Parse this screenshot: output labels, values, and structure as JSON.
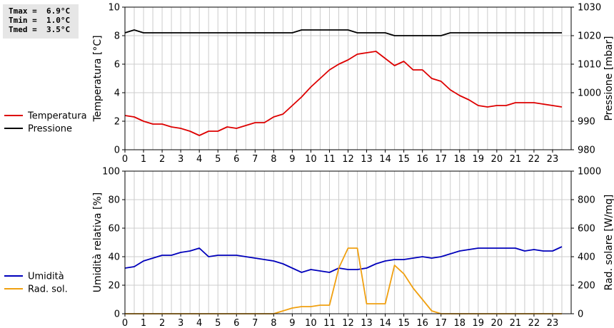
{
  "stats": {
    "tmax": "Tmax =  6.9°C",
    "tmin": "Tmin =  1.0°C",
    "tmed": "Tmed =  3.5°C"
  },
  "colors": {
    "temperature": "#dd0000",
    "pressure": "#000000",
    "humidity": "#0000bb",
    "radiation": "#f0a010",
    "grid": "#cccccc"
  },
  "chart_data": [
    {
      "type": "line",
      "ylabel": "Temperatura [°C]",
      "y2label": "Pressione [mbar]",
      "xlim": [
        0,
        24
      ],
      "x_ticks": [
        "0",
        "1",
        "2",
        "3",
        "4",
        "5",
        "6",
        "7",
        "8",
        "9",
        "10",
        "11",
        "12",
        "13",
        "14",
        "15",
        "16",
        "17",
        "18",
        "19",
        "20",
        "21",
        "22",
        "23"
      ],
      "ylim": [
        0,
        10
      ],
      "y_ticks": [
        "0",
        "2",
        "4",
        "6",
        "8",
        "10"
      ],
      "y2lim": [
        980,
        1030
      ],
      "y2_ticks": [
        "980",
        "990",
        "1000",
        "1010",
        "1020",
        "1030"
      ],
      "grid": true,
      "legend_position": "left",
      "series": [
        {
          "name": "Temperatura",
          "axis": "left",
          "color": "#dd0000",
          "x": [
            0,
            0.5,
            1,
            1.5,
            2,
            2.5,
            3,
            3.5,
            4,
            4.5,
            5,
            5.5,
            6,
            6.5,
            7,
            7.5,
            8,
            8.5,
            9,
            9.5,
            10,
            10.5,
            11,
            11.5,
            12,
            12.5,
            13,
            13.5,
            14,
            14.5,
            15,
            15.5,
            16,
            16.5,
            17,
            17.5,
            18,
            18.5,
            19,
            19.5,
            20,
            20.5,
            21,
            21.5,
            22,
            22.5,
            23,
            23.5
          ],
          "y": [
            2.4,
            2.3,
            2.0,
            1.8,
            1.8,
            1.6,
            1.5,
            1.3,
            1.0,
            1.3,
            1.3,
            1.6,
            1.5,
            1.7,
            1.9,
            1.9,
            2.3,
            2.5,
            3.1,
            3.7,
            4.4,
            5.0,
            5.6,
            6.0,
            6.3,
            6.7,
            6.8,
            6.9,
            6.4,
            5.9,
            6.2,
            5.6,
            5.6,
            5.0,
            4.8,
            4.2,
            3.8,
            3.5,
            3.1,
            3.0,
            3.1,
            3.1,
            3.3,
            3.3,
            3.3,
            3.2,
            3.1,
            3.0
          ]
        },
        {
          "name": "Pressione",
          "axis": "right",
          "color": "#000000",
          "x": [
            0,
            0.5,
            1,
            9,
            9.5,
            12,
            12.5,
            14,
            14.5,
            17,
            17.5,
            23.5
          ],
          "y": [
            1021,
            1022,
            1021,
            1021,
            1022,
            1022,
            1021,
            1021,
            1020,
            1020,
            1021,
            1021
          ]
        }
      ]
    },
    {
      "type": "line",
      "ylabel": "Umidità relativa [%]",
      "y2label": "Rad. solare [W/mq]",
      "xlim": [
        0,
        24
      ],
      "x_ticks": [
        "0",
        "1",
        "2",
        "3",
        "4",
        "5",
        "6",
        "7",
        "8",
        "9",
        "10",
        "11",
        "12",
        "13",
        "14",
        "15",
        "16",
        "17",
        "18",
        "19",
        "20",
        "21",
        "22",
        "23"
      ],
      "ylim": [
        0,
        100
      ],
      "y_ticks": [
        "0",
        "20",
        "40",
        "60",
        "80",
        "100"
      ],
      "y2lim": [
        0,
        1000
      ],
      "y2_ticks": [
        "0",
        "200",
        "400",
        "600",
        "800",
        "1000"
      ],
      "grid": true,
      "legend_position": "left",
      "series": [
        {
          "name": "Umidità",
          "axis": "left",
          "color": "#0000bb",
          "x": [
            0,
            0.5,
            1,
            1.5,
            2,
            2.5,
            3,
            3.5,
            4,
            4.5,
            5,
            5.5,
            6,
            6.5,
            7,
            7.5,
            8,
            8.5,
            9,
            9.5,
            10,
            10.5,
            11,
            11.5,
            12,
            12.5,
            13,
            13.5,
            14,
            14.5,
            15,
            15.5,
            16,
            16.5,
            17,
            17.5,
            18,
            18.5,
            19,
            19.5,
            20,
            20.5,
            21,
            21.5,
            22,
            22.5,
            23,
            23.5
          ],
          "y": [
            32,
            33,
            37,
            39,
            41,
            41,
            43,
            44,
            46,
            40,
            41,
            41,
            41,
            40,
            39,
            38,
            37,
            35,
            32,
            29,
            31,
            30,
            29,
            32,
            31,
            31,
            32,
            35,
            37,
            38,
            38,
            39,
            40,
            39,
            40,
            42,
            44,
            45,
            46,
            46,
            46,
            46,
            46,
            44,
            45,
            44,
            44,
            47
          ]
        },
        {
          "name": "Rad. sol.",
          "axis": "right",
          "color": "#f0a010",
          "x": [
            0,
            8,
            8.5,
            9,
            9.5,
            10,
            10.5,
            11,
            11.5,
            12,
            12.5,
            13,
            13.5,
            14,
            14.5,
            15,
            15.5,
            16,
            16.5,
            17,
            23.5
          ],
          "y": [
            0,
            0,
            20,
            40,
            50,
            50,
            60,
            60,
            320,
            460,
            460,
            70,
            70,
            70,
            340,
            280,
            180,
            100,
            20,
            0,
            0
          ]
        }
      ]
    }
  ]
}
